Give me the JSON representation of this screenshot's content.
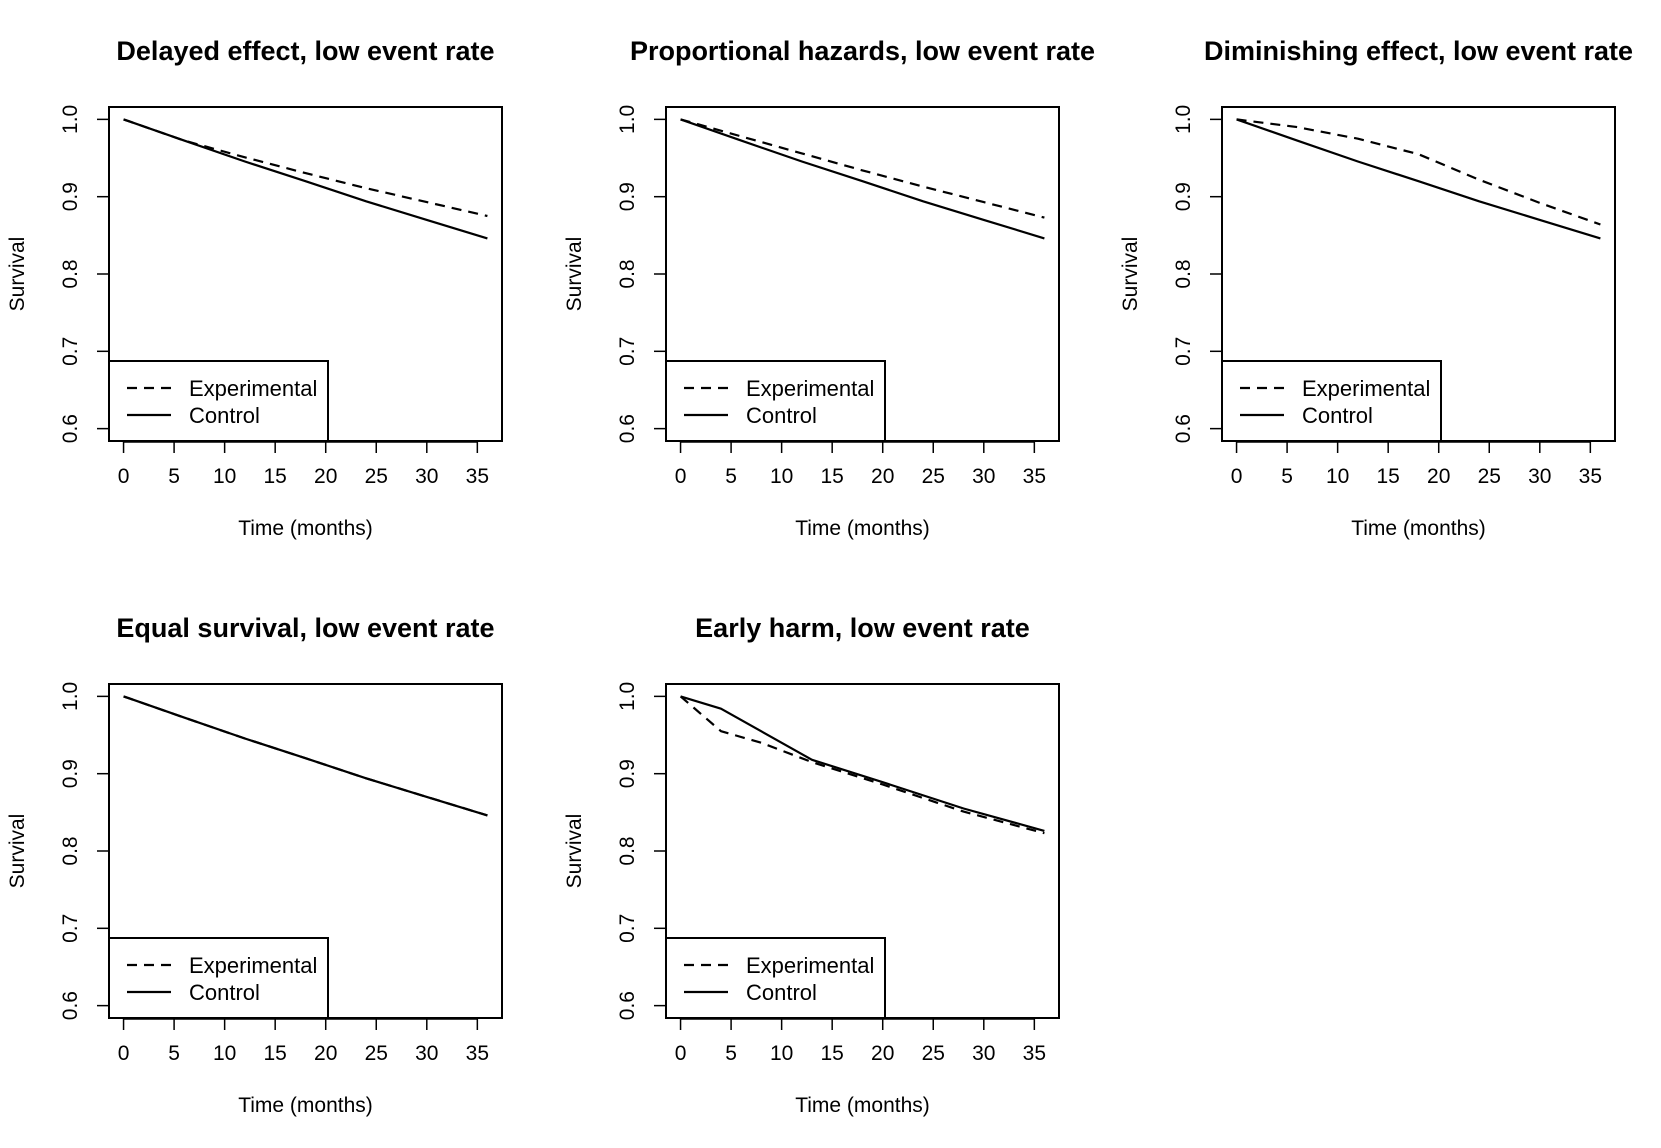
{
  "chart_data": [
    {
      "type": "line",
      "title": "Delayed effect, low event rate",
      "xlabel": "Time (months)",
      "ylabel": "Survival",
      "xlim": [
        0,
        36
      ],
      "ylim": [
        0.6,
        1.0
      ],
      "x_ticks": [
        0,
        5,
        10,
        15,
        20,
        25,
        30,
        35
      ],
      "y_ticks": [
        "0.6",
        "0.7",
        "0.8",
        "0.9",
        "1.0"
      ],
      "legend": {
        "position": "bottom-left",
        "entries": [
          {
            "label": "Experimental",
            "style": "dashed"
          },
          {
            "label": "Control",
            "style": "solid"
          }
        ]
      },
      "series": [
        {
          "name": "Experimental",
          "style": "dashed",
          "points": [
            [
              0,
              1.0
            ],
            [
              6,
              0.9725
            ],
            [
              12,
              0.951
            ],
            [
              18,
              0.9305
            ],
            [
              24,
              0.911
            ],
            [
              30,
              0.893
            ],
            [
              36,
              0.875
            ]
          ]
        },
        {
          "name": "Control",
          "style": "solid",
          "points": [
            [
              0,
              1.0
            ],
            [
              6,
              0.9725
            ],
            [
              12,
              0.9455
            ],
            [
              18,
              0.92
            ],
            [
              24,
              0.894
            ],
            [
              30,
              0.87
            ],
            [
              36,
              0.846
            ]
          ]
        }
      ]
    },
    {
      "type": "line",
      "title": "Proportional hazards, low event rate",
      "xlabel": "Time (months)",
      "ylabel": "Survival",
      "xlim": [
        0,
        36
      ],
      "ylim": [
        0.6,
        1.0
      ],
      "x_ticks": [
        0,
        5,
        10,
        15,
        20,
        25,
        30,
        35
      ],
      "y_ticks": [
        "0.6",
        "0.7",
        "0.8",
        "0.9",
        "1.0"
      ],
      "legend": {
        "position": "bottom-left",
        "entries": [
          {
            "label": "Experimental",
            "style": "dashed"
          },
          {
            "label": "Control",
            "style": "solid"
          }
        ]
      },
      "series": [
        {
          "name": "Experimental",
          "style": "dashed",
          "points": [
            [
              0,
              1.0
            ],
            [
              6,
              0.978
            ],
            [
              12,
              0.956
            ],
            [
              18,
              0.934
            ],
            [
              24,
              0.913
            ],
            [
              30,
              0.893
            ],
            [
              36,
              0.873
            ]
          ]
        },
        {
          "name": "Control",
          "style": "solid",
          "points": [
            [
              0,
              1.0
            ],
            [
              6,
              0.9725
            ],
            [
              12,
              0.9455
            ],
            [
              18,
              0.92
            ],
            [
              24,
              0.894
            ],
            [
              30,
              0.87
            ],
            [
              36,
              0.846
            ]
          ]
        }
      ]
    },
    {
      "type": "line",
      "title": "Diminishing effect, low event rate",
      "xlabel": "Time (months)",
      "ylabel": "Survival",
      "xlim": [
        0,
        36
      ],
      "ylim": [
        0.6,
        1.0
      ],
      "x_ticks": [
        0,
        5,
        10,
        15,
        20,
        25,
        30,
        35
      ],
      "y_ticks": [
        "0.6",
        "0.7",
        "0.8",
        "0.9",
        "1.0"
      ],
      "legend": {
        "position": "bottom-left",
        "entries": [
          {
            "label": "Experimental",
            "style": "dashed"
          },
          {
            "label": "Control",
            "style": "solid"
          }
        ]
      },
      "series": [
        {
          "name": "Experimental",
          "style": "dashed",
          "points": [
            [
              0,
              1.0
            ],
            [
              6,
              0.99
            ],
            [
              12,
              0.975
            ],
            [
              18,
              0.955
            ],
            [
              24,
              0.922
            ],
            [
              30,
              0.892
            ],
            [
              36,
              0.864
            ]
          ]
        },
        {
          "name": "Control",
          "style": "solid",
          "points": [
            [
              0,
              1.0
            ],
            [
              6,
              0.9725
            ],
            [
              12,
              0.9455
            ],
            [
              18,
              0.92
            ],
            [
              24,
              0.894
            ],
            [
              30,
              0.87
            ],
            [
              36,
              0.846
            ]
          ]
        }
      ]
    },
    {
      "type": "line",
      "title": "Equal survival, low event rate",
      "xlabel": "Time (months)",
      "ylabel": "Survival",
      "xlim": [
        0,
        36
      ],
      "ylim": [
        0.6,
        1.0
      ],
      "x_ticks": [
        0,
        5,
        10,
        15,
        20,
        25,
        30,
        35
      ],
      "y_ticks": [
        "0.6",
        "0.7",
        "0.8",
        "0.9",
        "1.0"
      ],
      "legend": {
        "position": "bottom-left",
        "entries": [
          {
            "label": "Experimental",
            "style": "dashed"
          },
          {
            "label": "Control",
            "style": "solid"
          }
        ]
      },
      "series": [
        {
          "name": "Experimental",
          "style": "dashed",
          "points": [
            [
              0,
              1.0
            ],
            [
              6,
              0.9725
            ],
            [
              12,
              0.9455
            ],
            [
              18,
              0.92
            ],
            [
              24,
              0.894
            ],
            [
              30,
              0.87
            ],
            [
              36,
              0.846
            ]
          ]
        },
        {
          "name": "Control",
          "style": "solid",
          "points": [
            [
              0,
              1.0
            ],
            [
              6,
              0.9725
            ],
            [
              12,
              0.9455
            ],
            [
              18,
              0.92
            ],
            [
              24,
              0.894
            ],
            [
              30,
              0.87
            ],
            [
              36,
              0.846
            ]
          ]
        }
      ]
    },
    {
      "type": "line",
      "title": "Early harm, low event rate",
      "xlabel": "Time (months)",
      "ylabel": "Survival",
      "xlim": [
        0,
        36
      ],
      "ylim": [
        0.6,
        1.0
      ],
      "x_ticks": [
        0,
        5,
        10,
        15,
        20,
        25,
        30,
        35
      ],
      "y_ticks": [
        "0.6",
        "0.7",
        "0.8",
        "0.9",
        "1.0"
      ],
      "legend": {
        "position": "bottom-left",
        "entries": [
          {
            "label": "Experimental",
            "style": "dashed"
          },
          {
            "label": "Control",
            "style": "solid"
          }
        ]
      },
      "series": [
        {
          "name": "Experimental",
          "style": "dashed",
          "points": [
            [
              0,
              1.0
            ],
            [
              4,
              0.955
            ],
            [
              8,
              0.94
            ],
            [
              13,
              0.915
            ],
            [
              20,
              0.886
            ],
            [
              28,
              0.851
            ],
            [
              36,
              0.823
            ]
          ]
        },
        {
          "name": "Control",
          "style": "solid",
          "points": [
            [
              0,
              1.0
            ],
            [
              4,
              0.984
            ],
            [
              13,
              0.918
            ],
            [
              20,
              0.889
            ],
            [
              28,
              0.855
            ],
            [
              36,
              0.826
            ]
          ]
        }
      ]
    }
  ]
}
